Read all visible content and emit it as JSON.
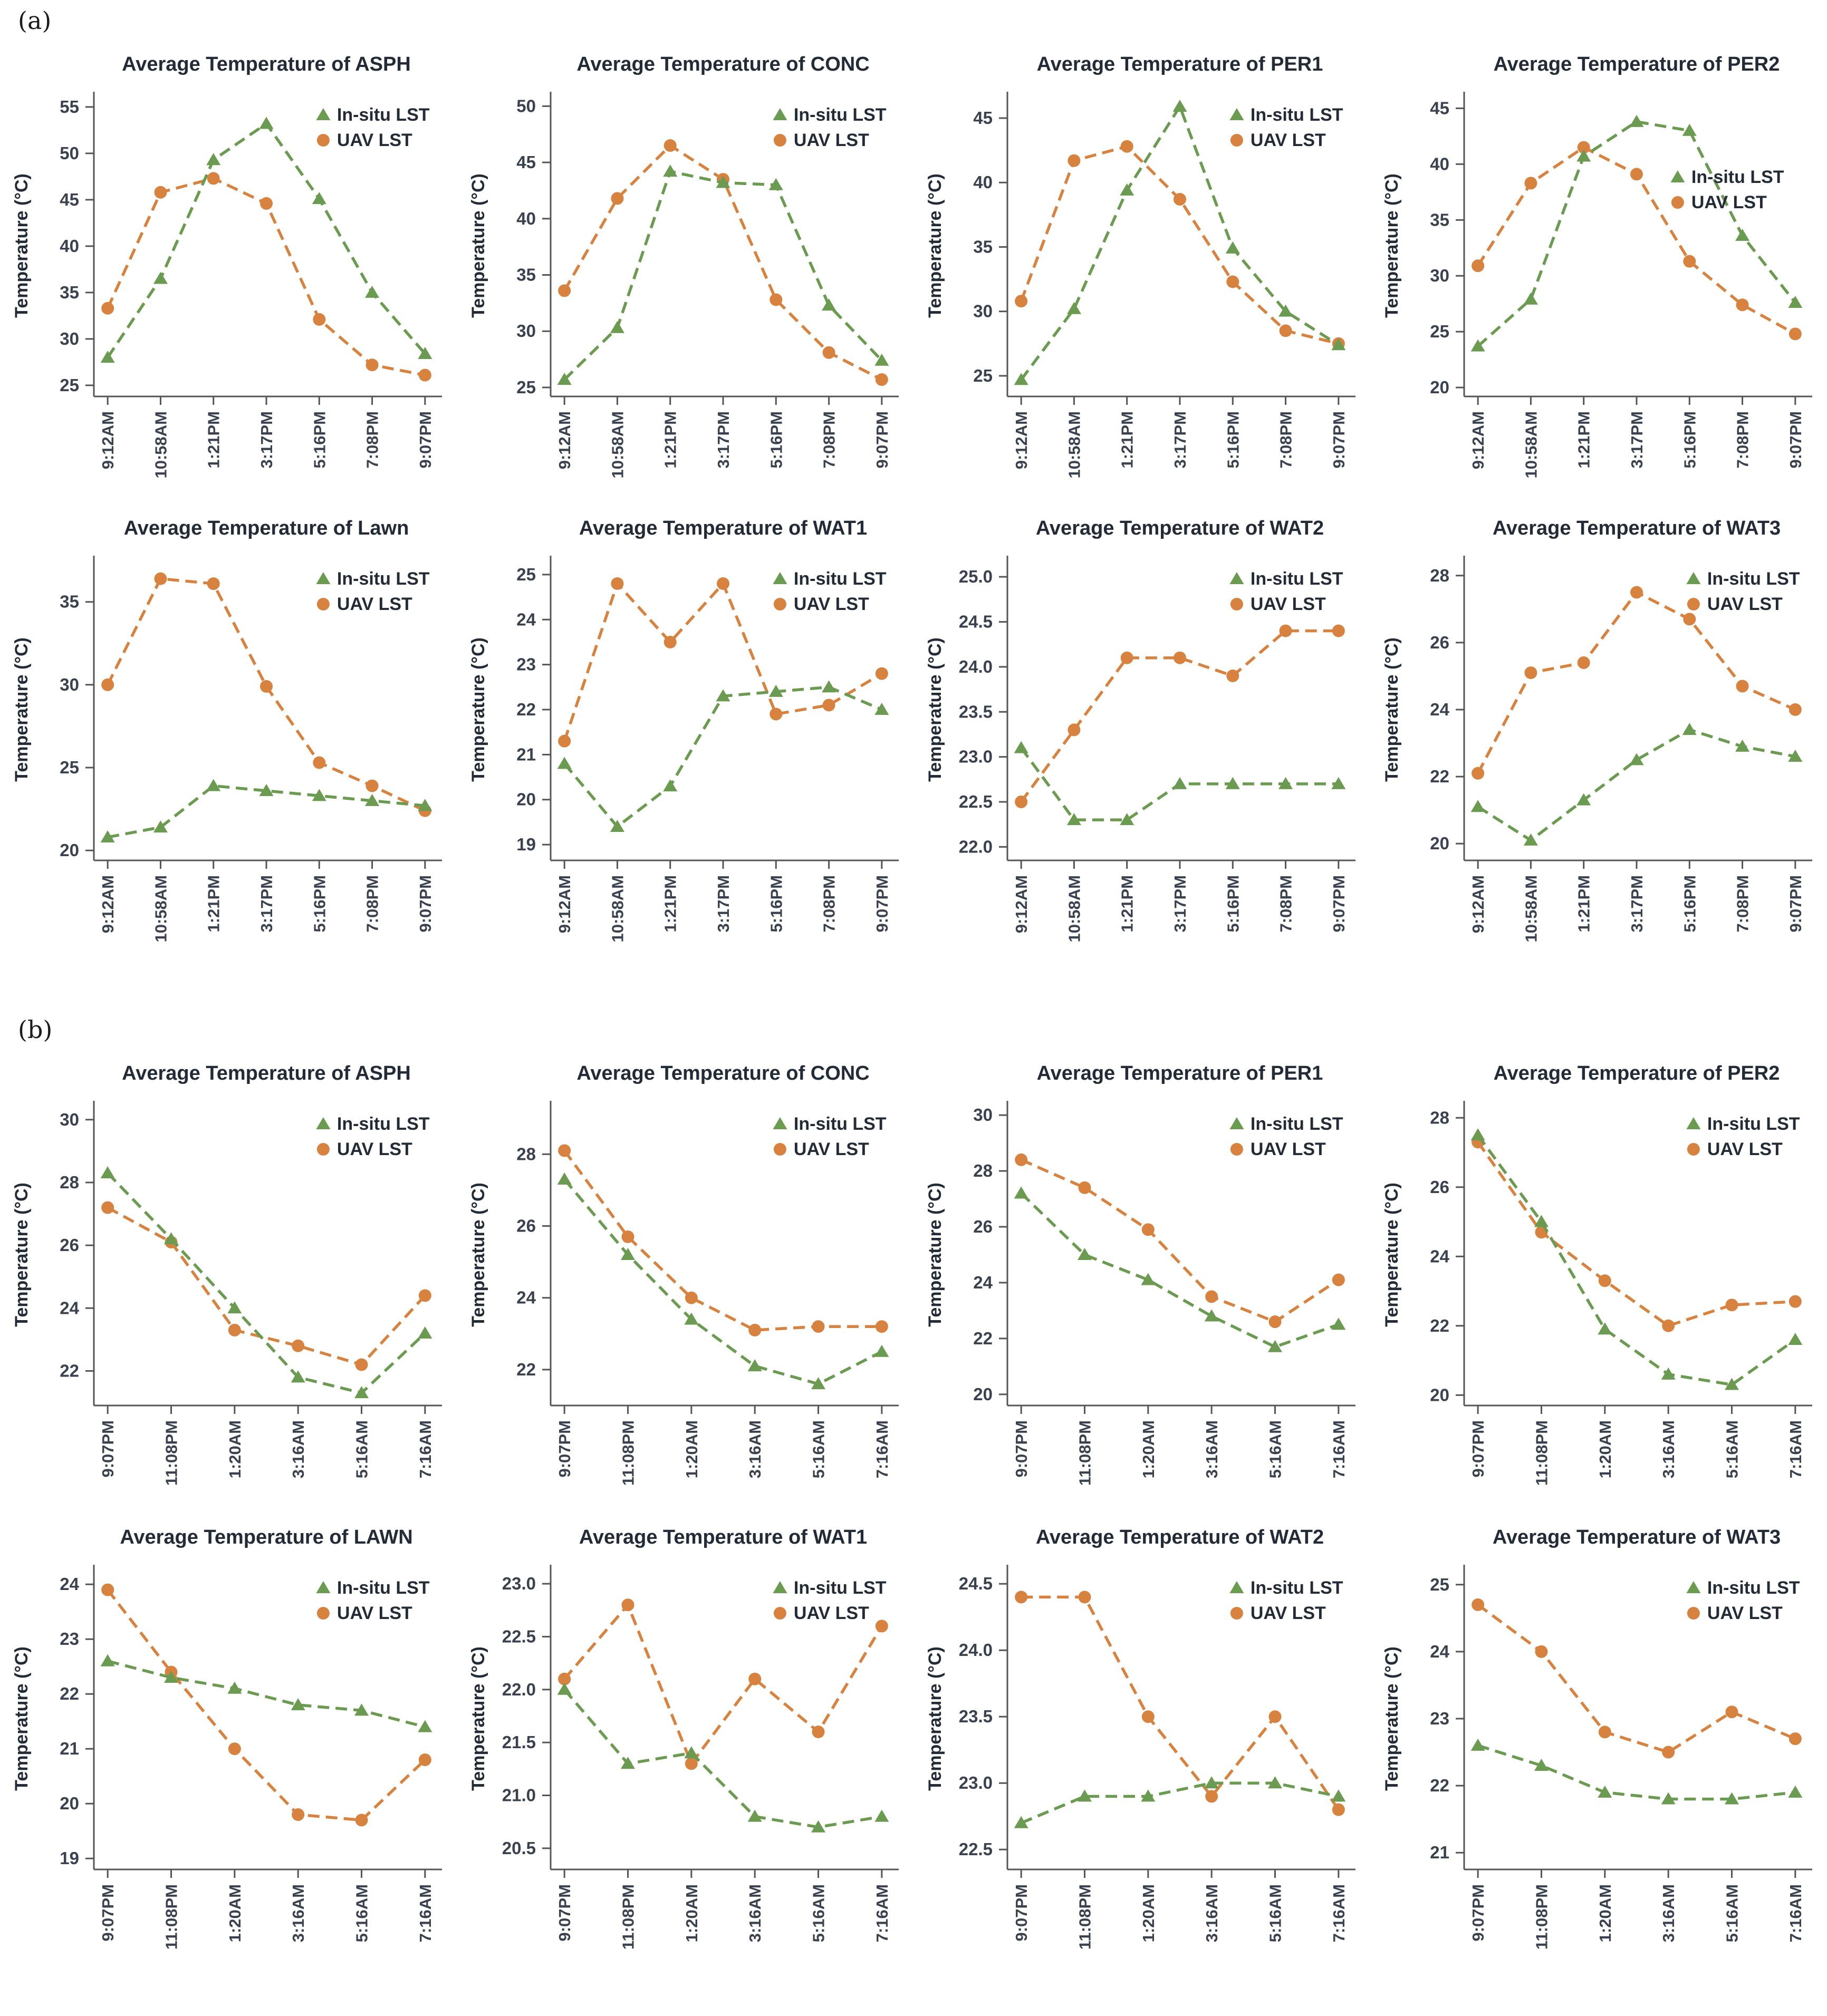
{
  "figure": {
    "group_a_label": "(a)",
    "group_b_label": "(b)",
    "ylabel": "Temperature (°C)",
    "legend": {
      "insitu": "In-situ LST",
      "uav": "UAV LST"
    },
    "colors": {
      "insitu_green": "#6B9A51",
      "uav_orange": "#D7823E",
      "title_text": "#222B36",
      "tick_text": "#39424E",
      "axis": "#555555"
    }
  },
  "chart_data": [
    {
      "group": "a",
      "type": "line",
      "title": "Average Temperature of ASPH",
      "xlabel": "",
      "ylabel": "Temperature (°C)",
      "categories": [
        "9:12AM",
        "10:58AM",
        "1:21PM",
        "3:17PM",
        "5:16PM",
        "7:08PM",
        "9:07PM"
      ],
      "series": [
        {
          "name": "In-situ LST",
          "marker": "triangle",
          "values": [
            28.0,
            36.5,
            49.3,
            53.2,
            45.1,
            35.0,
            28.4
          ]
        },
        {
          "name": "UAV LST",
          "marker": "circle",
          "values": [
            33.3,
            45.8,
            47.3,
            44.6,
            32.1,
            27.2,
            26.1
          ]
        }
      ],
      "ylim": [
        23.8,
        56.3
      ],
      "ytick_labels": [
        "25",
        "30",
        "35",
        "40",
        "45",
        "50",
        "55"
      ],
      "legend_position": "top-right",
      "legend_offset": [
        0,
        0
      ]
    },
    {
      "group": "a",
      "type": "line",
      "title": "Average Temperature of CONC",
      "xlabel": "",
      "ylabel": "Temperature (°C)",
      "categories": [
        "9:12AM",
        "10:58AM",
        "1:21PM",
        "3:17PM",
        "5:16PM",
        "7:08PM",
        "9:07PM"
      ],
      "series": [
        {
          "name": "In-situ LST",
          "marker": "triangle",
          "values": [
            25.7,
            30.3,
            44.2,
            43.2,
            43.0,
            32.3,
            27.4
          ]
        },
        {
          "name": "UAV LST",
          "marker": "circle",
          "values": [
            33.6,
            41.8,
            46.5,
            43.5,
            32.8,
            28.1,
            25.7
          ]
        }
      ],
      "ylim": [
        24.2,
        51.0
      ],
      "ytick_labels": [
        "25",
        "30",
        "35",
        "40",
        "45",
        "50"
      ],
      "legend_position": "top-right",
      "legend_offset": [
        0,
        0
      ]
    },
    {
      "group": "a",
      "type": "line",
      "title": "Average Temperature of PER1",
      "xlabel": "",
      "ylabel": "Temperature (°C)",
      "categories": [
        "9:12AM",
        "10:58AM",
        "1:21PM",
        "3:17PM",
        "5:16PM",
        "7:08PM",
        "9:07PM"
      ],
      "series": [
        {
          "name": "In-situ LST",
          "marker": "triangle",
          "values": [
            24.7,
            30.2,
            39.4,
            45.9,
            34.9,
            30.0,
            27.4
          ]
        },
        {
          "name": "UAV LST",
          "marker": "circle",
          "values": [
            30.8,
            41.7,
            42.8,
            38.7,
            32.3,
            28.5,
            27.5
          ]
        }
      ],
      "ylim": [
        23.4,
        46.8
      ],
      "ytick_labels": [
        "25",
        "30",
        "35",
        "40",
        "45"
      ],
      "legend_position": "top-right",
      "legend_offset": [
        0,
        0
      ]
    },
    {
      "group": "a",
      "type": "line",
      "title": "Average Temperature of PER2",
      "xlabel": "",
      "ylabel": "Temperature (°C)",
      "categories": [
        "9:12AM",
        "10:58AM",
        "1:21PM",
        "3:17PM",
        "5:16PM",
        "7:08PM",
        "9:07PM"
      ],
      "series": [
        {
          "name": "In-situ LST",
          "marker": "triangle",
          "values": [
            23.7,
            27.9,
            40.7,
            43.8,
            43.0,
            33.6,
            27.6
          ]
        },
        {
          "name": "UAV LST",
          "marker": "circle",
          "values": [
            30.9,
            38.3,
            41.5,
            39.1,
            31.3,
            27.4,
            24.8
          ]
        }
      ],
      "ylim": [
        19.2,
        46.2
      ],
      "ytick_labels": [
        "20",
        "25",
        "30",
        "35",
        "40",
        "45"
      ],
      "legend_position": "right-offset",
      "legend_offset": [
        -30,
        118
      ]
    },
    {
      "group": "a",
      "type": "line",
      "title": "Average Temperature of Lawn",
      "xlabel": "",
      "ylabel": "Temperature (°C)",
      "categories": [
        "9:12AM",
        "10:58AM",
        "1:21PM",
        "3:17PM",
        "5:16PM",
        "7:08PM",
        "9:07PM"
      ],
      "series": [
        {
          "name": "In-situ LST",
          "marker": "triangle",
          "values": [
            20.8,
            21.4,
            23.9,
            23.6,
            23.3,
            23.0,
            22.7
          ]
        },
        {
          "name": "UAV LST",
          "marker": "circle",
          "values": [
            30.0,
            36.4,
            36.1,
            29.9,
            25.3,
            23.9,
            22.4
          ]
        }
      ],
      "ylim": [
        19.4,
        37.6
      ],
      "ytick_labels": [
        "20",
        "25",
        "30",
        "35"
      ],
      "legend_position": "top-right",
      "legend_offset": [
        0,
        0
      ]
    },
    {
      "group": "a",
      "type": "line",
      "title": "Average Temperature of WAT1",
      "xlabel": "",
      "ylabel": "Temperature (°C)",
      "categories": [
        "9:12AM",
        "10:58AM",
        "1:21PM",
        "3:17PM",
        "5:16PM",
        "7:08PM",
        "9:07PM"
      ],
      "series": [
        {
          "name": "In-situ LST",
          "marker": "triangle",
          "values": [
            20.8,
            19.4,
            20.3,
            22.3,
            22.4,
            22.5,
            22.0
          ]
        },
        {
          "name": "UAV LST",
          "marker": "circle",
          "values": [
            21.3,
            24.8,
            23.5,
            24.8,
            21.9,
            22.1,
            22.8
          ]
        }
      ],
      "ylim": [
        18.65,
        25.35
      ],
      "ytick_labels": [
        "19",
        "20",
        "21",
        "22",
        "23",
        "24",
        "25"
      ],
      "legend_position": "top-right",
      "legend_offset": [
        0,
        0
      ]
    },
    {
      "group": "a",
      "type": "line",
      "title": "Average Temperature of WAT2",
      "xlabel": "",
      "ylabel": "Temperature (°C)",
      "categories": [
        "9:12AM",
        "10:58AM",
        "1:21PM",
        "3:17PM",
        "5:16PM",
        "7:08PM",
        "9:07PM"
      ],
      "series": [
        {
          "name": "In-situ LST",
          "marker": "triangle",
          "values": [
            23.1,
            22.3,
            22.3,
            22.7,
            22.7,
            22.7,
            22.7
          ]
        },
        {
          "name": "UAV LST",
          "marker": "circle",
          "values": [
            22.5,
            23.3,
            24.1,
            24.1,
            23.9,
            24.4,
            24.4
          ]
        }
      ],
      "ylim": [
        21.85,
        25.2
      ],
      "ytick_labels": [
        "22.0",
        "22.5",
        "23.0",
        "23.5",
        "24.0",
        "24.5",
        "25.0"
      ],
      "legend_position": "top-right",
      "legend_offset": [
        0,
        0
      ]
    },
    {
      "group": "a",
      "type": "line",
      "title": "Average Temperature of WAT3",
      "xlabel": "",
      "ylabel": "Temperature (°C)",
      "categories": [
        "9:12AM",
        "10:58AM",
        "1:21PM",
        "3:17PM",
        "5:16PM",
        "7:08PM",
        "9:07PM"
      ],
      "series": [
        {
          "name": "In-situ LST",
          "marker": "triangle",
          "values": [
            21.1,
            20.1,
            21.3,
            22.5,
            23.4,
            22.9,
            22.6
          ]
        },
        {
          "name": "UAV LST",
          "marker": "circle",
          "values": [
            22.1,
            25.1,
            25.4,
            27.5,
            26.7,
            24.7,
            24.0
          ]
        }
      ],
      "ylim": [
        19.5,
        28.5
      ],
      "ytick_labels": [
        "20",
        "22",
        "24",
        "26",
        "28"
      ],
      "legend_position": "top-right",
      "legend_offset": [
        0,
        0
      ]
    },
    {
      "group": "b",
      "type": "line",
      "title": "Average Temperature of ASPH",
      "xlabel": "",
      "ylabel": "Temperature (°C)",
      "categories": [
        "9:07PM",
        "11:08PM",
        "1:20AM",
        "3:16AM",
        "5:16AM",
        "7:16AM"
      ],
      "series": [
        {
          "name": "In-situ LST",
          "marker": "triangle",
          "values": [
            28.3,
            26.2,
            24.0,
            21.8,
            21.3,
            23.2
          ]
        },
        {
          "name": "UAV LST",
          "marker": "circle",
          "values": [
            27.2,
            26.1,
            23.3,
            22.8,
            22.2,
            24.4
          ]
        }
      ],
      "ylim": [
        20.9,
        30.5
      ],
      "ytick_labels": [
        "22",
        "24",
        "26",
        "28",
        "30"
      ],
      "legend_position": "top-right",
      "legend_offset": [
        0,
        0
      ]
    },
    {
      "group": "b",
      "type": "line",
      "title": "Average Temperature of CONC",
      "xlabel": "",
      "ylabel": "Temperature (°C)",
      "categories": [
        "9:07PM",
        "11:08PM",
        "1:20AM",
        "3:16AM",
        "5:16AM",
        "7:16AM"
      ],
      "series": [
        {
          "name": "In-situ LST",
          "marker": "triangle",
          "values": [
            27.3,
            25.2,
            23.4,
            22.1,
            21.6,
            22.5
          ]
        },
        {
          "name": "UAV LST",
          "marker": "circle",
          "values": [
            28.1,
            25.7,
            24.0,
            23.1,
            23.2,
            23.2
          ]
        }
      ],
      "ylim": [
        21.0,
        29.4
      ],
      "ytick_labels": [
        "22",
        "24",
        "26",
        "28"
      ],
      "legend_position": "top-right",
      "legend_offset": [
        0,
        0
      ]
    },
    {
      "group": "b",
      "type": "line",
      "title": "Average Temperature of PER1",
      "xlabel": "",
      "ylabel": "Temperature (°C)",
      "categories": [
        "9:07PM",
        "11:08PM",
        "1:20AM",
        "3:16AM",
        "5:16AM",
        "7:16AM"
      ],
      "series": [
        {
          "name": "In-situ LST",
          "marker": "triangle",
          "values": [
            27.2,
            25.0,
            24.1,
            22.8,
            21.7,
            22.5
          ]
        },
        {
          "name": "UAV LST",
          "marker": "circle",
          "values": [
            28.4,
            27.4,
            25.9,
            23.5,
            22.6,
            24.1
          ]
        }
      ],
      "ylim": [
        19.6,
        30.4
      ],
      "ytick_labels": [
        "20",
        "22",
        "24",
        "26",
        "28",
        "30"
      ],
      "legend_position": "top-right",
      "legend_offset": [
        0,
        0
      ]
    },
    {
      "group": "b",
      "type": "line",
      "title": "Average Temperature of PER2",
      "xlabel": "",
      "ylabel": "Temperature (°C)",
      "categories": [
        "9:07PM",
        "11:08PM",
        "1:20AM",
        "3:16AM",
        "5:16AM",
        "7:16AM"
      ],
      "series": [
        {
          "name": "In-situ LST",
          "marker": "triangle",
          "values": [
            27.5,
            25.0,
            21.9,
            20.6,
            20.3,
            21.6
          ]
        },
        {
          "name": "UAV LST",
          "marker": "circle",
          "values": [
            27.3,
            24.7,
            23.3,
            22.0,
            22.6,
            22.7
          ]
        }
      ],
      "ylim": [
        19.7,
        28.4
      ],
      "ytick_labels": [
        "20",
        "22",
        "24",
        "26",
        "28"
      ],
      "legend_position": "top-right",
      "legend_offset": [
        0,
        0
      ]
    },
    {
      "group": "b",
      "type": "line",
      "title": "Average Temperature of LAWN",
      "xlabel": "",
      "ylabel": "Temperature (°C)",
      "categories": [
        "9:07PM",
        "11:08PM",
        "1:20AM",
        "3:16AM",
        "5:16AM",
        "7:16AM"
      ],
      "series": [
        {
          "name": "In-situ LST",
          "marker": "triangle",
          "values": [
            22.6,
            22.3,
            22.1,
            21.8,
            21.7,
            21.4
          ]
        },
        {
          "name": "UAV LST",
          "marker": "circle",
          "values": [
            23.9,
            22.4,
            21.0,
            19.8,
            19.7,
            20.8
          ]
        }
      ],
      "ylim": [
        18.8,
        24.3
      ],
      "ytick_labels": [
        "19",
        "20",
        "21",
        "22",
        "23",
        "24"
      ],
      "legend_position": "top-right",
      "legend_offset": [
        0,
        0
      ]
    },
    {
      "group": "b",
      "type": "line",
      "title": "Average Temperature of WAT1",
      "xlabel": "",
      "ylabel": "Temperature (°C)",
      "categories": [
        "9:07PM",
        "11:08PM",
        "1:20AM",
        "3:16AM",
        "5:16AM",
        "7:16AM"
      ],
      "series": [
        {
          "name": "In-situ LST",
          "marker": "triangle",
          "values": [
            22.0,
            21.3,
            21.4,
            20.8,
            20.7,
            20.8
          ]
        },
        {
          "name": "UAV LST",
          "marker": "circle",
          "values": [
            22.1,
            22.8,
            21.3,
            22.1,
            21.6,
            22.6
          ]
        }
      ],
      "ylim": [
        20.3,
        23.15
      ],
      "ytick_labels": [
        "20.5",
        "21.0",
        "21.5",
        "22.0",
        "22.5",
        "23.0"
      ],
      "legend_position": "top-right",
      "legend_offset": [
        0,
        0
      ]
    },
    {
      "group": "b",
      "type": "line",
      "title": "Average Temperature of WAT2",
      "xlabel": "",
      "ylabel": "Temperature (°C)",
      "categories": [
        "9:07PM",
        "11:08PM",
        "1:20AM",
        "3:16AM",
        "5:16AM",
        "7:16AM"
      ],
      "series": [
        {
          "name": "In-situ LST",
          "marker": "triangle",
          "values": [
            22.7,
            22.9,
            22.9,
            23.0,
            23.0,
            22.9
          ]
        },
        {
          "name": "UAV LST",
          "marker": "circle",
          "values": [
            24.4,
            24.4,
            23.5,
            22.9,
            23.5,
            22.8
          ]
        }
      ],
      "ylim": [
        22.35,
        24.62
      ],
      "ytick_labels": [
        "22.5",
        "23.0",
        "23.5",
        "24.0",
        "24.5"
      ],
      "legend_position": "top-right",
      "legend_offset": [
        0,
        0
      ]
    },
    {
      "group": "b",
      "type": "line",
      "title": "Average Temperature of WAT3",
      "xlabel": "",
      "ylabel": "Temperature (°C)",
      "categories": [
        "9:07PM",
        "11:08PM",
        "1:20AM",
        "3:16AM",
        "5:16AM",
        "7:16AM"
      ],
      "series": [
        {
          "name": "In-situ LST",
          "marker": "triangle",
          "values": [
            22.6,
            22.3,
            21.9,
            21.8,
            21.8,
            21.9
          ]
        },
        {
          "name": "UAV LST",
          "marker": "circle",
          "values": [
            24.7,
            24.0,
            22.8,
            22.5,
            23.1,
            22.7
          ]
        }
      ],
      "ylim": [
        20.75,
        25.25
      ],
      "ytick_labels": [
        "21",
        "22",
        "23",
        "24",
        "25"
      ],
      "legend_position": "top-right",
      "legend_offset": [
        0,
        0
      ]
    }
  ]
}
